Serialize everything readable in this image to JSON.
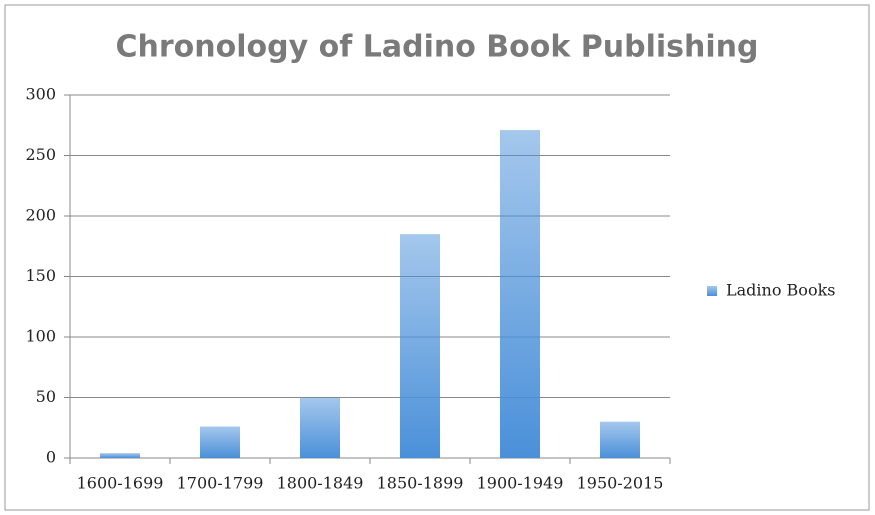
{
  "chart_data": {
    "type": "bar",
    "title": "Chronology of Ladino Book Publishing",
    "categories": [
      "1600-1699",
      "1700-1799",
      "1800-1849",
      "1850-1899",
      "1900-1949",
      "1950-2015"
    ],
    "series": [
      {
        "name": "Ladino Books",
        "color": "#4a90d9",
        "values": [
          4,
          26,
          50,
          185,
          271,
          30
        ]
      }
    ],
    "ylim": [
      0,
      300
    ],
    "yticks": [
      0,
      50,
      100,
      150,
      200,
      250,
      300
    ],
    "grid": true,
    "legend": "right"
  }
}
